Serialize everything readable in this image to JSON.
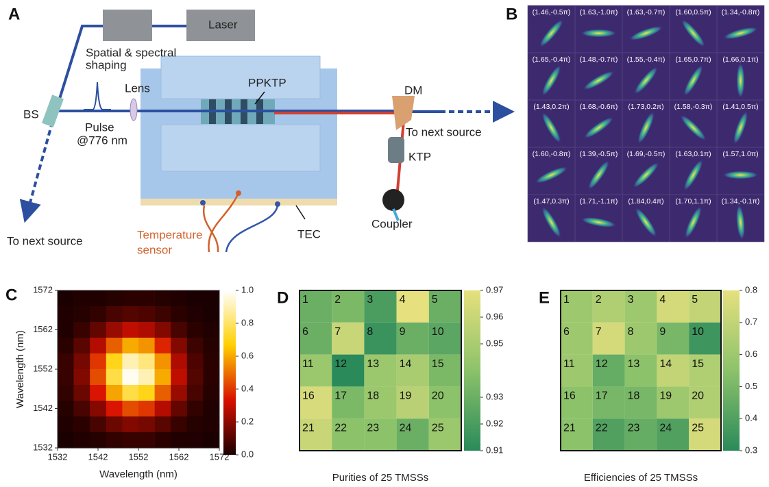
{
  "panel_a": {
    "label": "A",
    "laser": "Laser",
    "shaping_1": "Spatial & spectral",
    "shaping_2": "shaping",
    "ppktp": "PPKTP",
    "lens": "Lens",
    "bs": "BS",
    "pulse_1": "Pulse",
    "pulse_2": "@776 nm",
    "dm": "DM",
    "next_right": "To next source",
    "ktp": "KTP",
    "coupler": "Coupler",
    "tec": "TEC",
    "sensor_1": "Temperature",
    "sensor_2": "sensor",
    "next_left": "To next source"
  },
  "panel_b": {
    "label": "B",
    "cells": [
      "(1.46,-0.5π)",
      "(1.63,-1.0π)",
      "(1.63,-0.7π)",
      "(1.60,0.5π)",
      "(1.34,-0.8π)",
      "(1.65,-0.4π)",
      "(1.48,-0.7π)",
      "(1.55,-0.4π)",
      "(1.65,0.7π)",
      "(1.66,0.1π)",
      "(1.43,0.2π)",
      "(1.68,-0.6π)",
      "(1.73,0.2π)",
      "(1.58,-0.3π)",
      "(1.41,0.5π)",
      "(1.60,-0.8π)",
      "(1.39,-0.5π)",
      "(1.69,-0.5π)",
      "(1.63,0.1π)",
      "(1.57,1.0π)",
      "(1.47,0.3π)",
      "(1.71,-1.1π)",
      "(1.84,0.4π)",
      "(1.70,1.1π)",
      "(1.34,-0.1π)"
    ]
  },
  "panel_c": {
    "label": "C",
    "xlabel": "Wavelength (nm)",
    "ylabel": "Wavelength (nm)",
    "xlim": [
      1532,
      1572
    ],
    "ylim": [
      1532,
      1572
    ],
    "xticks": [
      1532,
      1542,
      1552,
      1562,
      1572
    ],
    "yticks": [
      1532,
      1542,
      1552,
      1562,
      1572
    ],
    "colormap": [
      "#1a0000",
      "#d81000",
      "#ffd000",
      "#ffffff"
    ],
    "zlim": [
      0,
      1
    ],
    "zticks": [
      {
        "value": 0,
        "label": "0.0"
      },
      0.2,
      0.4,
      0.6,
      0.8,
      {
        "value": 1,
        "label": "1.0"
      }
    ],
    "z": [
      [
        0,
        0.01,
        0.01,
        0.02,
        0.03,
        0.03,
        0.02,
        0.01,
        0,
        0
      ],
      [
        0.01,
        0.02,
        0.04,
        0.08,
        0.1,
        0.09,
        0.06,
        0.03,
        0.01,
        0
      ],
      [
        0.01,
        0.05,
        0.13,
        0.22,
        0.29,
        0.26,
        0.18,
        0.08,
        0.03,
        0.01
      ],
      [
        0.03,
        0.11,
        0.27,
        0.47,
        0.6,
        0.56,
        0.37,
        0.18,
        0.06,
        0.02
      ],
      [
        0.05,
        0.16,
        0.4,
        0.7,
        0.9,
        0.83,
        0.56,
        0.26,
        0.09,
        0.03
      ],
      [
        0.05,
        0.18,
        0.44,
        0.76,
        0.98,
        0.9,
        0.6,
        0.29,
        0.1,
        0.03
      ],
      [
        0.04,
        0.14,
        0.34,
        0.59,
        0.76,
        0.7,
        0.47,
        0.22,
        0.08,
        0.02
      ],
      [
        0.02,
        0.08,
        0.19,
        0.34,
        0.44,
        0.4,
        0.27,
        0.13,
        0.04,
        0.01
      ],
      [
        0.01,
        0.03,
        0.08,
        0.14,
        0.18,
        0.16,
        0.11,
        0.05,
        0.02,
        0.01
      ],
      [
        0,
        0.01,
        0.02,
        0.04,
        0.05,
        0.05,
        0.03,
        0.01,
        0.01,
        0
      ]
    ]
  },
  "panel_d": {
    "label": "D",
    "caption": "Purities of 25 TMSSs",
    "colormap": [
      "#2a8a5a",
      "#8cc26a",
      "#e6e07e"
    ],
    "zlim": [
      0.91,
      0.97
    ],
    "zticks": [
      0.97,
      0.96,
      0.95,
      0.93,
      0.92,
      0.91
    ],
    "cells": [
      {
        "label": 1,
        "value": 0.93
      },
      {
        "label": 2,
        "value": 0.935
      },
      {
        "label": 3,
        "value": 0.92
      },
      {
        "label": 4,
        "value": 0.97
      },
      {
        "label": 5,
        "value": 0.93
      },
      {
        "label": 6,
        "value": 0.93
      },
      {
        "label": 7,
        "value": 0.96
      },
      {
        "label": 8,
        "value": 0.915
      },
      {
        "label": 9,
        "value": 0.93
      },
      {
        "label": 10,
        "value": 0.925
      },
      {
        "label": 11,
        "value": 0.945
      },
      {
        "label": 12,
        "value": 0.91
      },
      {
        "label": 13,
        "value": 0.945
      },
      {
        "label": 14,
        "value": 0.95
      },
      {
        "label": 15,
        "value": 0.935
      },
      {
        "label": 16,
        "value": 0.965
      },
      {
        "label": 17,
        "value": 0.935
      },
      {
        "label": 18,
        "value": 0.945
      },
      {
        "label": 19,
        "value": 0.955
      },
      {
        "label": 20,
        "value": 0.94
      },
      {
        "label": 21,
        "value": 0.96
      },
      {
        "label": 22,
        "value": 0.94
      },
      {
        "label": 23,
        "value": 0.94
      },
      {
        "label": 24,
        "value": 0.93
      },
      {
        "label": 25,
        "value": 0.945
      }
    ]
  },
  "panel_e": {
    "label": "E",
    "caption": "Efficiencies of 25 TMSSs",
    "colormap": [
      "#2a8a5a",
      "#8cc26a",
      "#e6e07e"
    ],
    "zlim": [
      0.3,
      0.8
    ],
    "zticks": [
      0.8,
      0.7,
      0.6,
      0.5,
      0.4,
      0.3
    ],
    "cells": [
      {
        "label": 1,
        "value": 0.6
      },
      {
        "label": 2,
        "value": 0.65
      },
      {
        "label": 3,
        "value": 0.6
      },
      {
        "label": 4,
        "value": 0.75
      },
      {
        "label": 5,
        "value": 0.7
      },
      {
        "label": 6,
        "value": 0.6
      },
      {
        "label": 7,
        "value": 0.75
      },
      {
        "label": 8,
        "value": 0.6
      },
      {
        "label": 9,
        "value": 0.5
      },
      {
        "label": 10,
        "value": 0.35
      },
      {
        "label": 11,
        "value": 0.6
      },
      {
        "label": 12,
        "value": 0.45
      },
      {
        "label": 13,
        "value": 0.55
      },
      {
        "label": 14,
        "value": 0.7
      },
      {
        "label": 15,
        "value": 0.65
      },
      {
        "label": 16,
        "value": 0.55
      },
      {
        "label": 17,
        "value": 0.5
      },
      {
        "label": 18,
        "value": 0.5
      },
      {
        "label": 19,
        "value": 0.6
      },
      {
        "label": 20,
        "value": 0.65
      },
      {
        "label": 21,
        "value": 0.55
      },
      {
        "label": 22,
        "value": 0.4
      },
      {
        "label": 23,
        "value": 0.45
      },
      {
        "label": 24,
        "value": 0.4
      },
      {
        "label": 25,
        "value": 0.75
      }
    ]
  }
}
